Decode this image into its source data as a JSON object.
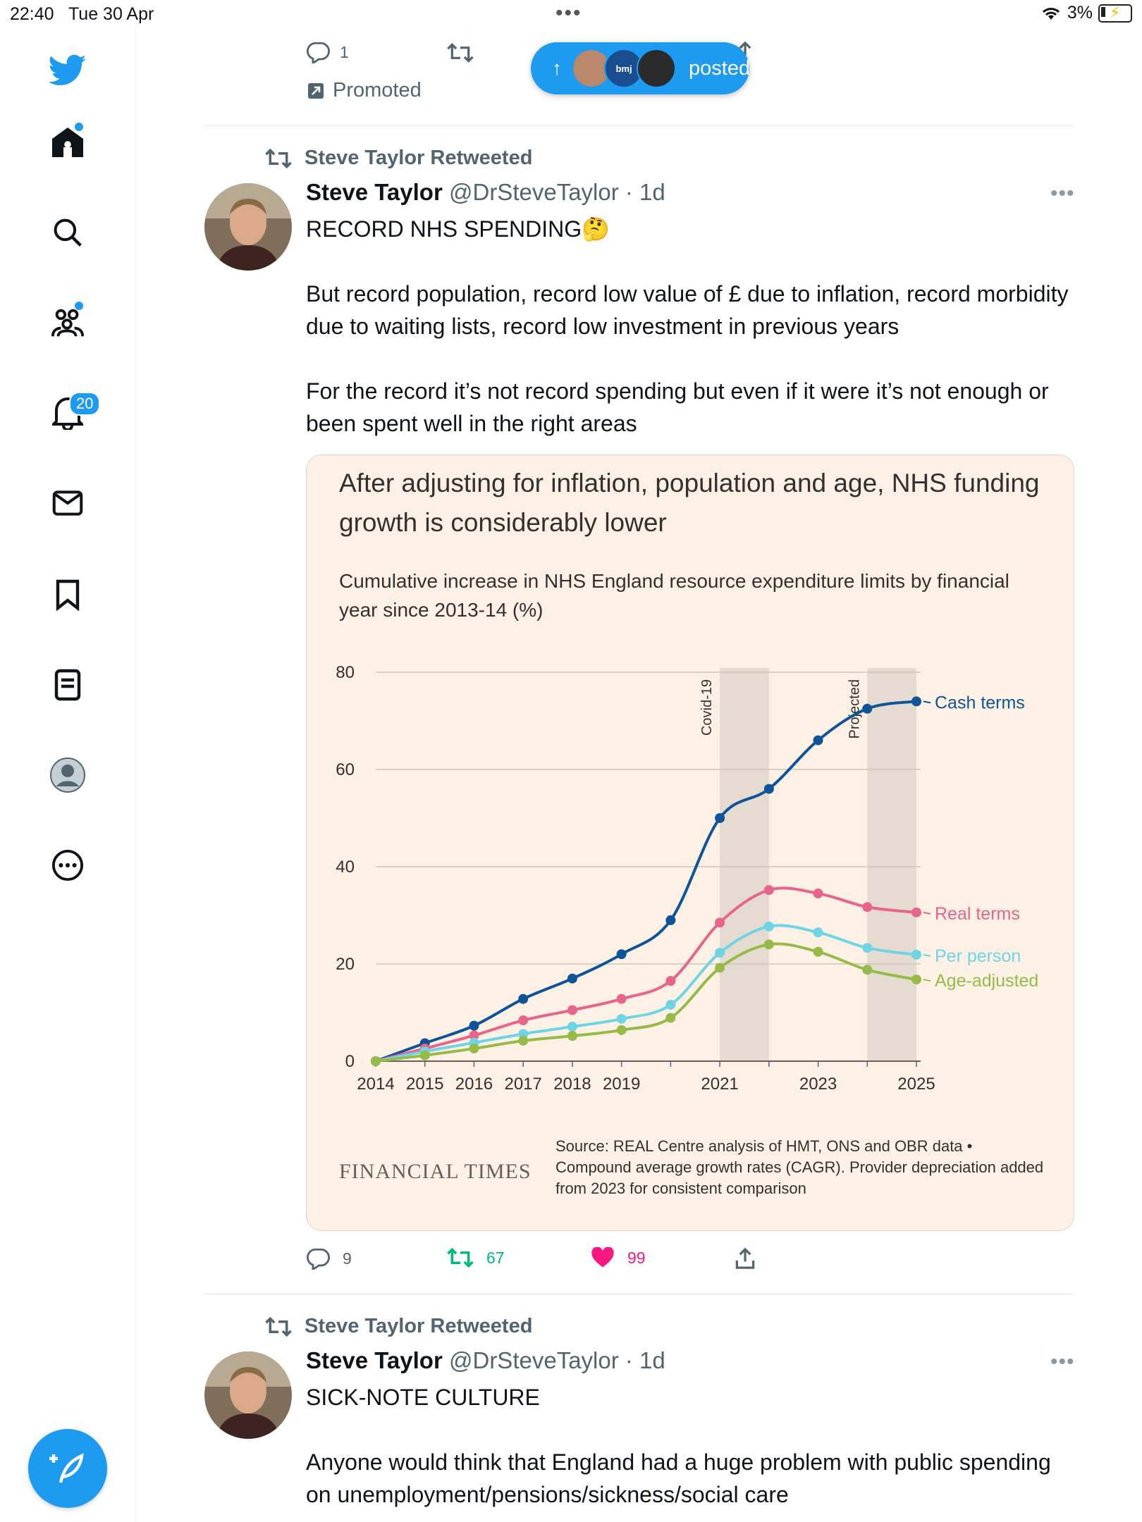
{
  "status_bar": {
    "time": "22:40",
    "date": "Tue 30 Apr",
    "battery": "3%"
  },
  "sidebar": {
    "items": [
      {
        "icon": "home-icon"
      },
      {
        "icon": "search-icon"
      },
      {
        "icon": "communities-icon"
      },
      {
        "icon": "notifications-icon",
        "badge": "20"
      },
      {
        "icon": "messages-icon"
      },
      {
        "icon": "bookmarks-icon"
      },
      {
        "icon": "lists-icon"
      },
      {
        "icon": "profile-icon"
      },
      {
        "icon": "more-icon"
      }
    ],
    "compose_icon": "compose-icon"
  },
  "prev_tweet": {
    "reply_count": "1",
    "promoted_label": "Promoted"
  },
  "new_posts_pill": {
    "label": "posted",
    "avatar_text": "bmj"
  },
  "tweets": [
    {
      "retweet_label": "Steve Taylor Retweeted",
      "name": "Steve Taylor",
      "handle": "@DrSteveTaylor",
      "time": "· 1d",
      "text": "RECORD NHS SPENDING🤔\n\nBut record population, record low value of £ due to inflation, record morbidity due to waiting lists, record low investment in previous years\n\nFor the record it’s not record spending but even if it were it’s not enough or been spent well in the right areas",
      "replies": "9",
      "retweets": "67",
      "likes": "99"
    },
    {
      "retweet_label": "Steve Taylor Retweeted",
      "name": "Steve Taylor",
      "handle": "@DrSteveTaylor",
      "time": "· 1d",
      "text": "SICK-NOTE CULTURE\n\nAnyone would think that England had a huge problem with public spending on unemployment/pensions/sickness/social care"
    }
  ],
  "card": {
    "title": "After adjusting for inflation, population and age, NHS funding growth is considerably lower",
    "subtitle": "Cumulative increase in NHS England resource expenditure limits by financial year since 2013-14 (%)",
    "brand": "FINANCIAL TIMES",
    "source": "Source: REAL Centre analysis of HMT, ONS and OBR data • Compound average growth rates (CAGR). Provider depreciation added from 2023 for consistent comparison"
  },
  "chart_data": {
    "type": "line",
    "x": [
      2014,
      2015,
      2016,
      2017,
      2018,
      2019,
      2020,
      2021,
      2022,
      2023,
      2024,
      2025
    ],
    "xticks": [
      "2014",
      "2015",
      "2016",
      "2017",
      "2018",
      "2019",
      "2021",
      "2023",
      "2025"
    ],
    "ylim": [
      0,
      80
    ],
    "yticks": [
      0,
      20,
      40,
      60,
      80
    ],
    "grid": true,
    "shaded_bands": [
      {
        "label": "Covid-19",
        "from": 2021,
        "to": 2022
      },
      {
        "label": "Projected",
        "from": 2024,
        "to": 2025
      }
    ],
    "series": [
      {
        "name": "Cash terms",
        "color": "#0f5499",
        "values": [
          0,
          3.7,
          7.3,
          12.8,
          17.0,
          22.0,
          29.0,
          50.0,
          56.0,
          66.0,
          72.5,
          74.0
        ]
      },
      {
        "name": "Real terms",
        "color": "#e7648a",
        "values": [
          0,
          2.6,
          5.3,
          8.4,
          10.5,
          12.8,
          16.5,
          28.5,
          35.2,
          34.5,
          31.7,
          30.6
        ]
      },
      {
        "name": "Per person",
        "color": "#6fd5e5",
        "values": [
          0,
          2.0,
          3.8,
          5.6,
          7.1,
          8.7,
          11.6,
          22.3,
          27.7,
          26.5,
          23.3,
          21.9
        ]
      },
      {
        "name": "Age-adjusted",
        "color": "#96bb48",
        "values": [
          0,
          1.2,
          2.6,
          4.2,
          5.2,
          6.4,
          8.9,
          19.2,
          24.0,
          22.5,
          18.8,
          16.8
        ]
      }
    ]
  }
}
